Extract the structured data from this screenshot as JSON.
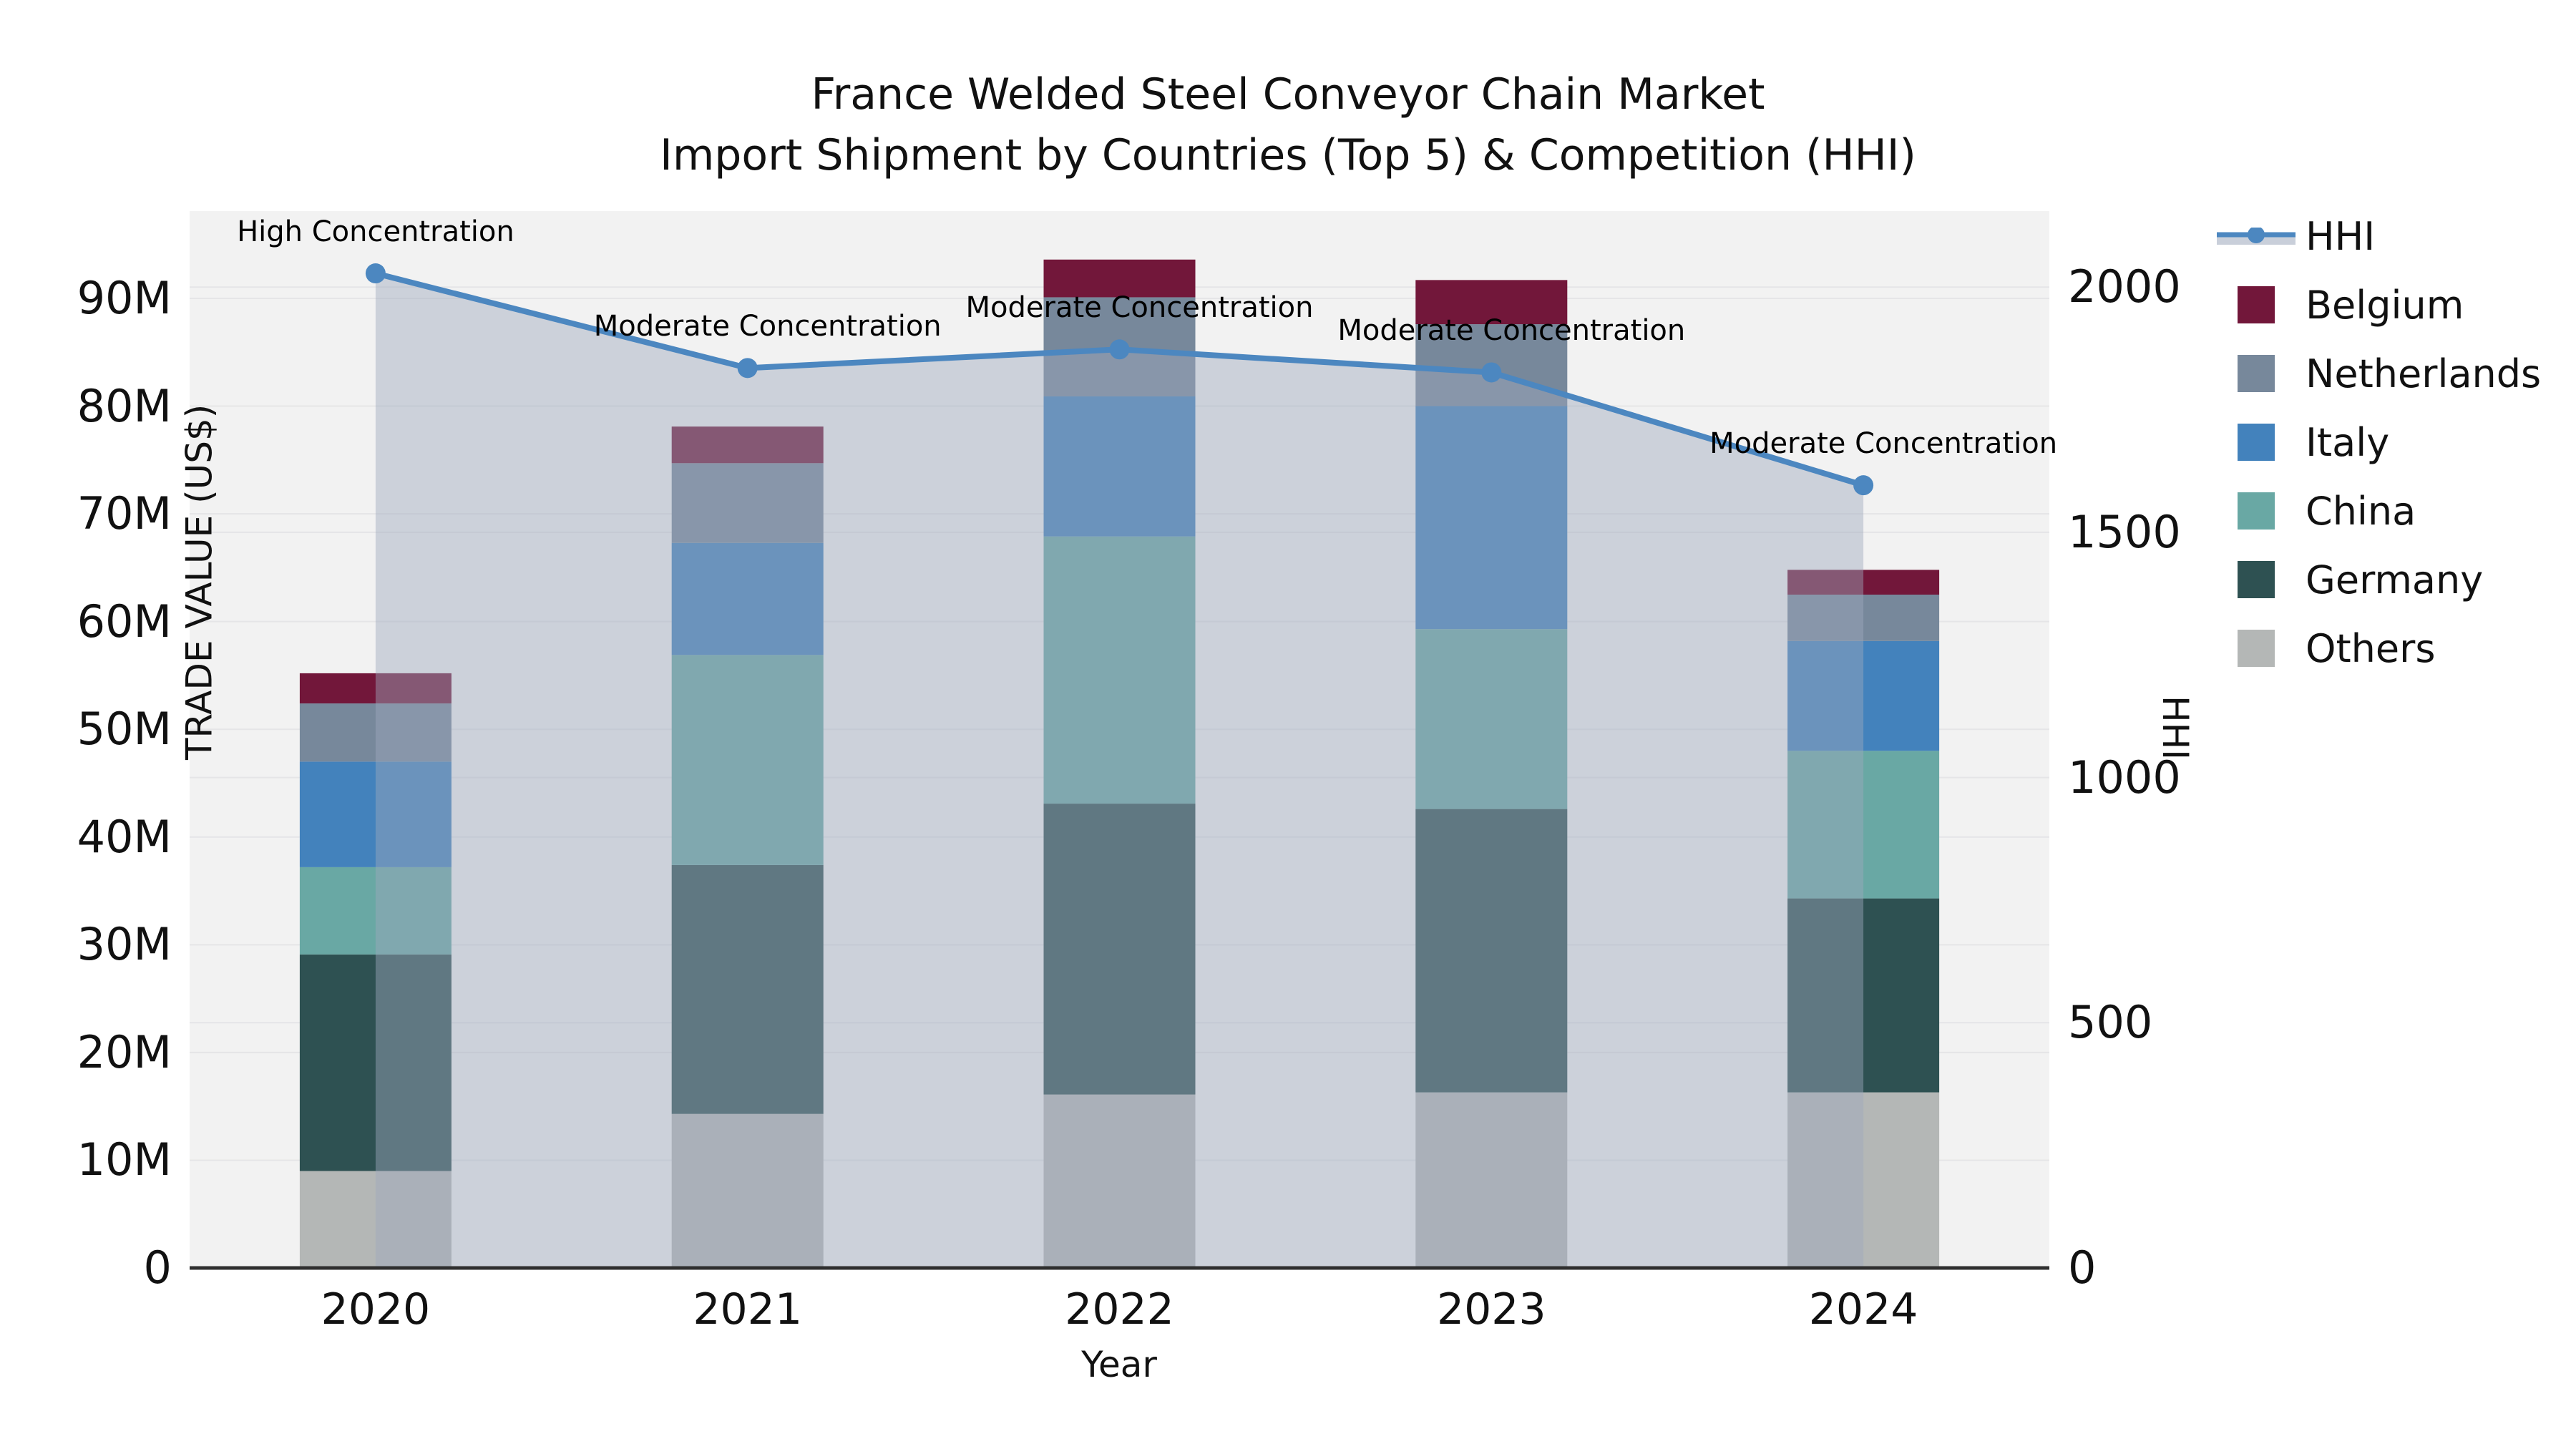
{
  "title": {
    "line1": "France Welded Steel Conveyor Chain Market",
    "line2": "Import Shipment by Countries (Top 5) & Competition (HHI)"
  },
  "axes": {
    "x": {
      "label": "Year",
      "tick_labels": [
        "2020",
        "2021",
        "2022",
        "2023",
        "2024"
      ]
    },
    "y_left": {
      "label": "TRADE VALUE (US$)",
      "tick_labels": [
        "0",
        "10M",
        "20M",
        "30M",
        "40M",
        "50M",
        "60M",
        "70M",
        "80M",
        "90M"
      ],
      "tick_values": [
        0,
        10,
        20,
        30,
        40,
        50,
        60,
        70,
        80,
        90
      ]
    },
    "y_right": {
      "label": "HHI",
      "tick_labels": [
        "0",
        "500",
        "1000",
        "1500",
        "2000"
      ],
      "tick_values": [
        0,
        500,
        1000,
        1500,
        2000
      ]
    }
  },
  "legend": [
    {
      "label": "HHI",
      "kind": "line",
      "color": "#4c87c0"
    },
    {
      "label": "Belgium",
      "kind": "patch",
      "color": "#72173a"
    },
    {
      "label": "Netherlands",
      "kind": "patch",
      "color": "#77889b"
    },
    {
      "label": "Italy",
      "kind": "patch",
      "color": "#4382bc"
    },
    {
      "label": "China",
      "kind": "patch",
      "color": "#69a8a4"
    },
    {
      "label": "Germany",
      "kind": "patch",
      "color": "#2e5152"
    },
    {
      "label": "Others",
      "kind": "patch",
      "color": "#b4b7b6"
    }
  ],
  "annotations": [
    {
      "text": "High Concentration",
      "year": "2020"
    },
    {
      "text": "Moderate Concentration",
      "year": "2021"
    },
    {
      "text": "Moderate Concentration",
      "year": "2022"
    },
    {
      "text": "Moderate Concentration",
      "year": "2023"
    },
    {
      "text": "Moderate Concentration",
      "year": "2024"
    }
  ],
  "colors": {
    "plot_background": "#f2f2f2",
    "gridline": "#e5e5e7",
    "baseline": "#2f2f2f",
    "hhi_line": "#4c87c0",
    "hhi_area_fill": "rgba(158,168,188,0.45)",
    "text": "#1a1a1a"
  },
  "chart_data": {
    "type": "bar",
    "subtype": "stacked-bars-with-line-overlay",
    "categories": [
      "2020",
      "2021",
      "2022",
      "2023",
      "2024"
    ],
    "value_unit": "Million US$",
    "series": [
      {
        "name": "Others",
        "color": "#b4b7b6",
        "values": [
          9.0,
          14.3,
          16.1,
          16.3,
          16.3
        ]
      },
      {
        "name": "Germany",
        "color": "#2e5152",
        "values": [
          20.1,
          23.1,
          27.0,
          26.3,
          18.0
        ]
      },
      {
        "name": "China",
        "color": "#69a8a4",
        "values": [
          8.1,
          19.5,
          24.8,
          16.7,
          13.7
        ]
      },
      {
        "name": "Italy",
        "color": "#4382bc",
        "values": [
          9.8,
          10.4,
          13.0,
          20.7,
          10.2
        ]
      },
      {
        "name": "Netherlands",
        "color": "#77889b",
        "values": [
          5.4,
          7.4,
          9.2,
          7.6,
          4.3
        ]
      },
      {
        "name": "Belgium",
        "color": "#72173a",
        "values": [
          2.8,
          3.4,
          3.5,
          4.1,
          2.3
        ]
      }
    ],
    "bar_totals": [
      55.2,
      78.1,
      93.6,
      91.7,
      64.8
    ],
    "line_series": {
      "name": "HHI",
      "color": "#4c87c0",
      "values": [
        2028,
        1835,
        1873,
        1826,
        1596
      ],
      "axis": "right",
      "area_fill": true
    },
    "ylim_left": [
      0,
      98.1
    ],
    "ylim_right": [
      0,
      2155
    ],
    "grid": true,
    "legend_position": "outside-top-right"
  }
}
